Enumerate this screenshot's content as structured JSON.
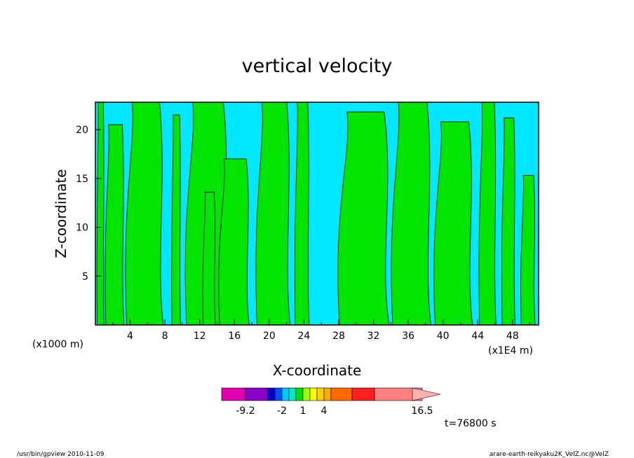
{
  "chart_data": {
    "type": "heatmap",
    "title": "vertical velocity",
    "xlabel": "X-coordinate",
    "ylabel": "Z-coordinate",
    "x_unit": "(x1000 m)",
    "x_unit_secondary": "(x1E4 m)",
    "xlim": [
      0,
      51
    ],
    "ylim": [
      0,
      22.8
    ],
    "x_ticks": [
      "4",
      "8",
      "12",
      "16",
      "20",
      "24",
      "28",
      "32",
      "36",
      "40",
      "44",
      "48"
    ],
    "y_ticks": [
      "5",
      "10",
      "15",
      "20"
    ],
    "x_tick_values": [
      4,
      8,
      12,
      16,
      20,
      24,
      28,
      32,
      36,
      40,
      44,
      48
    ],
    "y_tick_values": [
      5,
      10,
      15,
      20
    ],
    "field_colors": {
      "negative": "#00e8ff",
      "positive": "#00e400"
    },
    "positive_regions": [
      {
        "x": [
          0.2,
          1.0
        ],
        "z_top": 22.8
      },
      {
        "x": [
          1.2,
          3.3
        ],
        "z_top": 20.5
      },
      {
        "x": [
          3.6,
          7.8
        ],
        "z_top": 22.8
      },
      {
        "x": [
          8.8,
          9.8
        ],
        "z_top": 21.5
      },
      {
        "x": [
          10.5,
          15.2
        ],
        "z_top": 22.8
      },
      {
        "x": [
          12.4,
          13.8
        ],
        "z_top": 13.6
      },
      {
        "x": [
          14.3,
          17.7
        ],
        "z_top": 17.0
      },
      {
        "x": [
          18.6,
          22.4
        ],
        "z_top": 22.8
      },
      {
        "x": [
          23.0,
          24.6
        ],
        "z_top": 22.8
      },
      {
        "x": [
          28.1,
          33.8
        ],
        "z_top": 21.8
      },
      {
        "x": [
          34.2,
          38.6
        ],
        "z_top": 22.8
      },
      {
        "x": [
          39.1,
          43.4
        ],
        "z_top": 20.8
      },
      {
        "x": [
          44.2,
          46.1
        ],
        "z_top": 22.8
      },
      {
        "x": [
          46.8,
          48.3
        ],
        "z_top": 21.2
      },
      {
        "x": [
          49.0,
          50.6
        ],
        "z_top": 15.3
      }
    ],
    "colorbar": {
      "colors": [
        "#e000b0",
        "#8800c8",
        "#0000c8",
        "#0050ff",
        "#00c8ff",
        "#00e8c8",
        "#00e000",
        "#a0ff00",
        "#ffff00",
        "#ffd000",
        "#ffa800",
        "#ff6a00",
        "#ff2020",
        "#ff8080",
        "#ffb0b0"
      ],
      "tick_labels": [
        "-9.2",
        "-2",
        "1",
        "4",
        "16.5"
      ]
    },
    "time_label": "t=76800 s"
  },
  "footer": {
    "left": "/usr/bin/gpview   2010-11-09",
    "right": "arare-earth-reikyaku2K_VelZ.nc@VelZ"
  }
}
